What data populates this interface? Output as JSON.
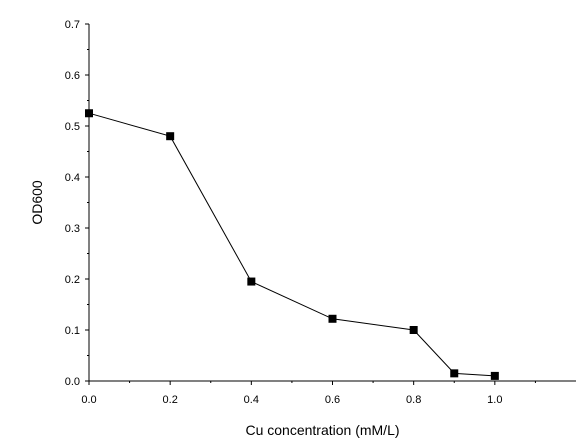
{
  "chart_data": {
    "type": "line",
    "xlabel": "Cu concentration (mM/L)",
    "ylabel": "OD600",
    "xlim": [
      0,
      1.2
    ],
    "ylim": [
      0,
      0.7
    ],
    "x_ticks": [
      "0.0",
      "0.2",
      "0.4",
      "0.6",
      "0.8",
      "1.0"
    ],
    "y_ticks": [
      "0.0",
      "0.1",
      "0.2",
      "0.3",
      "0.4",
      "0.5",
      "0.6",
      "0.7"
    ],
    "grid": false,
    "marker": "square",
    "series": [
      {
        "x": [
          0.0,
          0.2,
          0.4,
          0.6,
          0.8,
          0.9,
          1.0
        ],
        "y": [
          0.525,
          0.48,
          0.195,
          0.122,
          0.1,
          0.015,
          0.01
        ]
      }
    ],
    "colors": {
      "line": "#000000",
      "marker": "#000000",
      "axis": "#000000"
    }
  }
}
